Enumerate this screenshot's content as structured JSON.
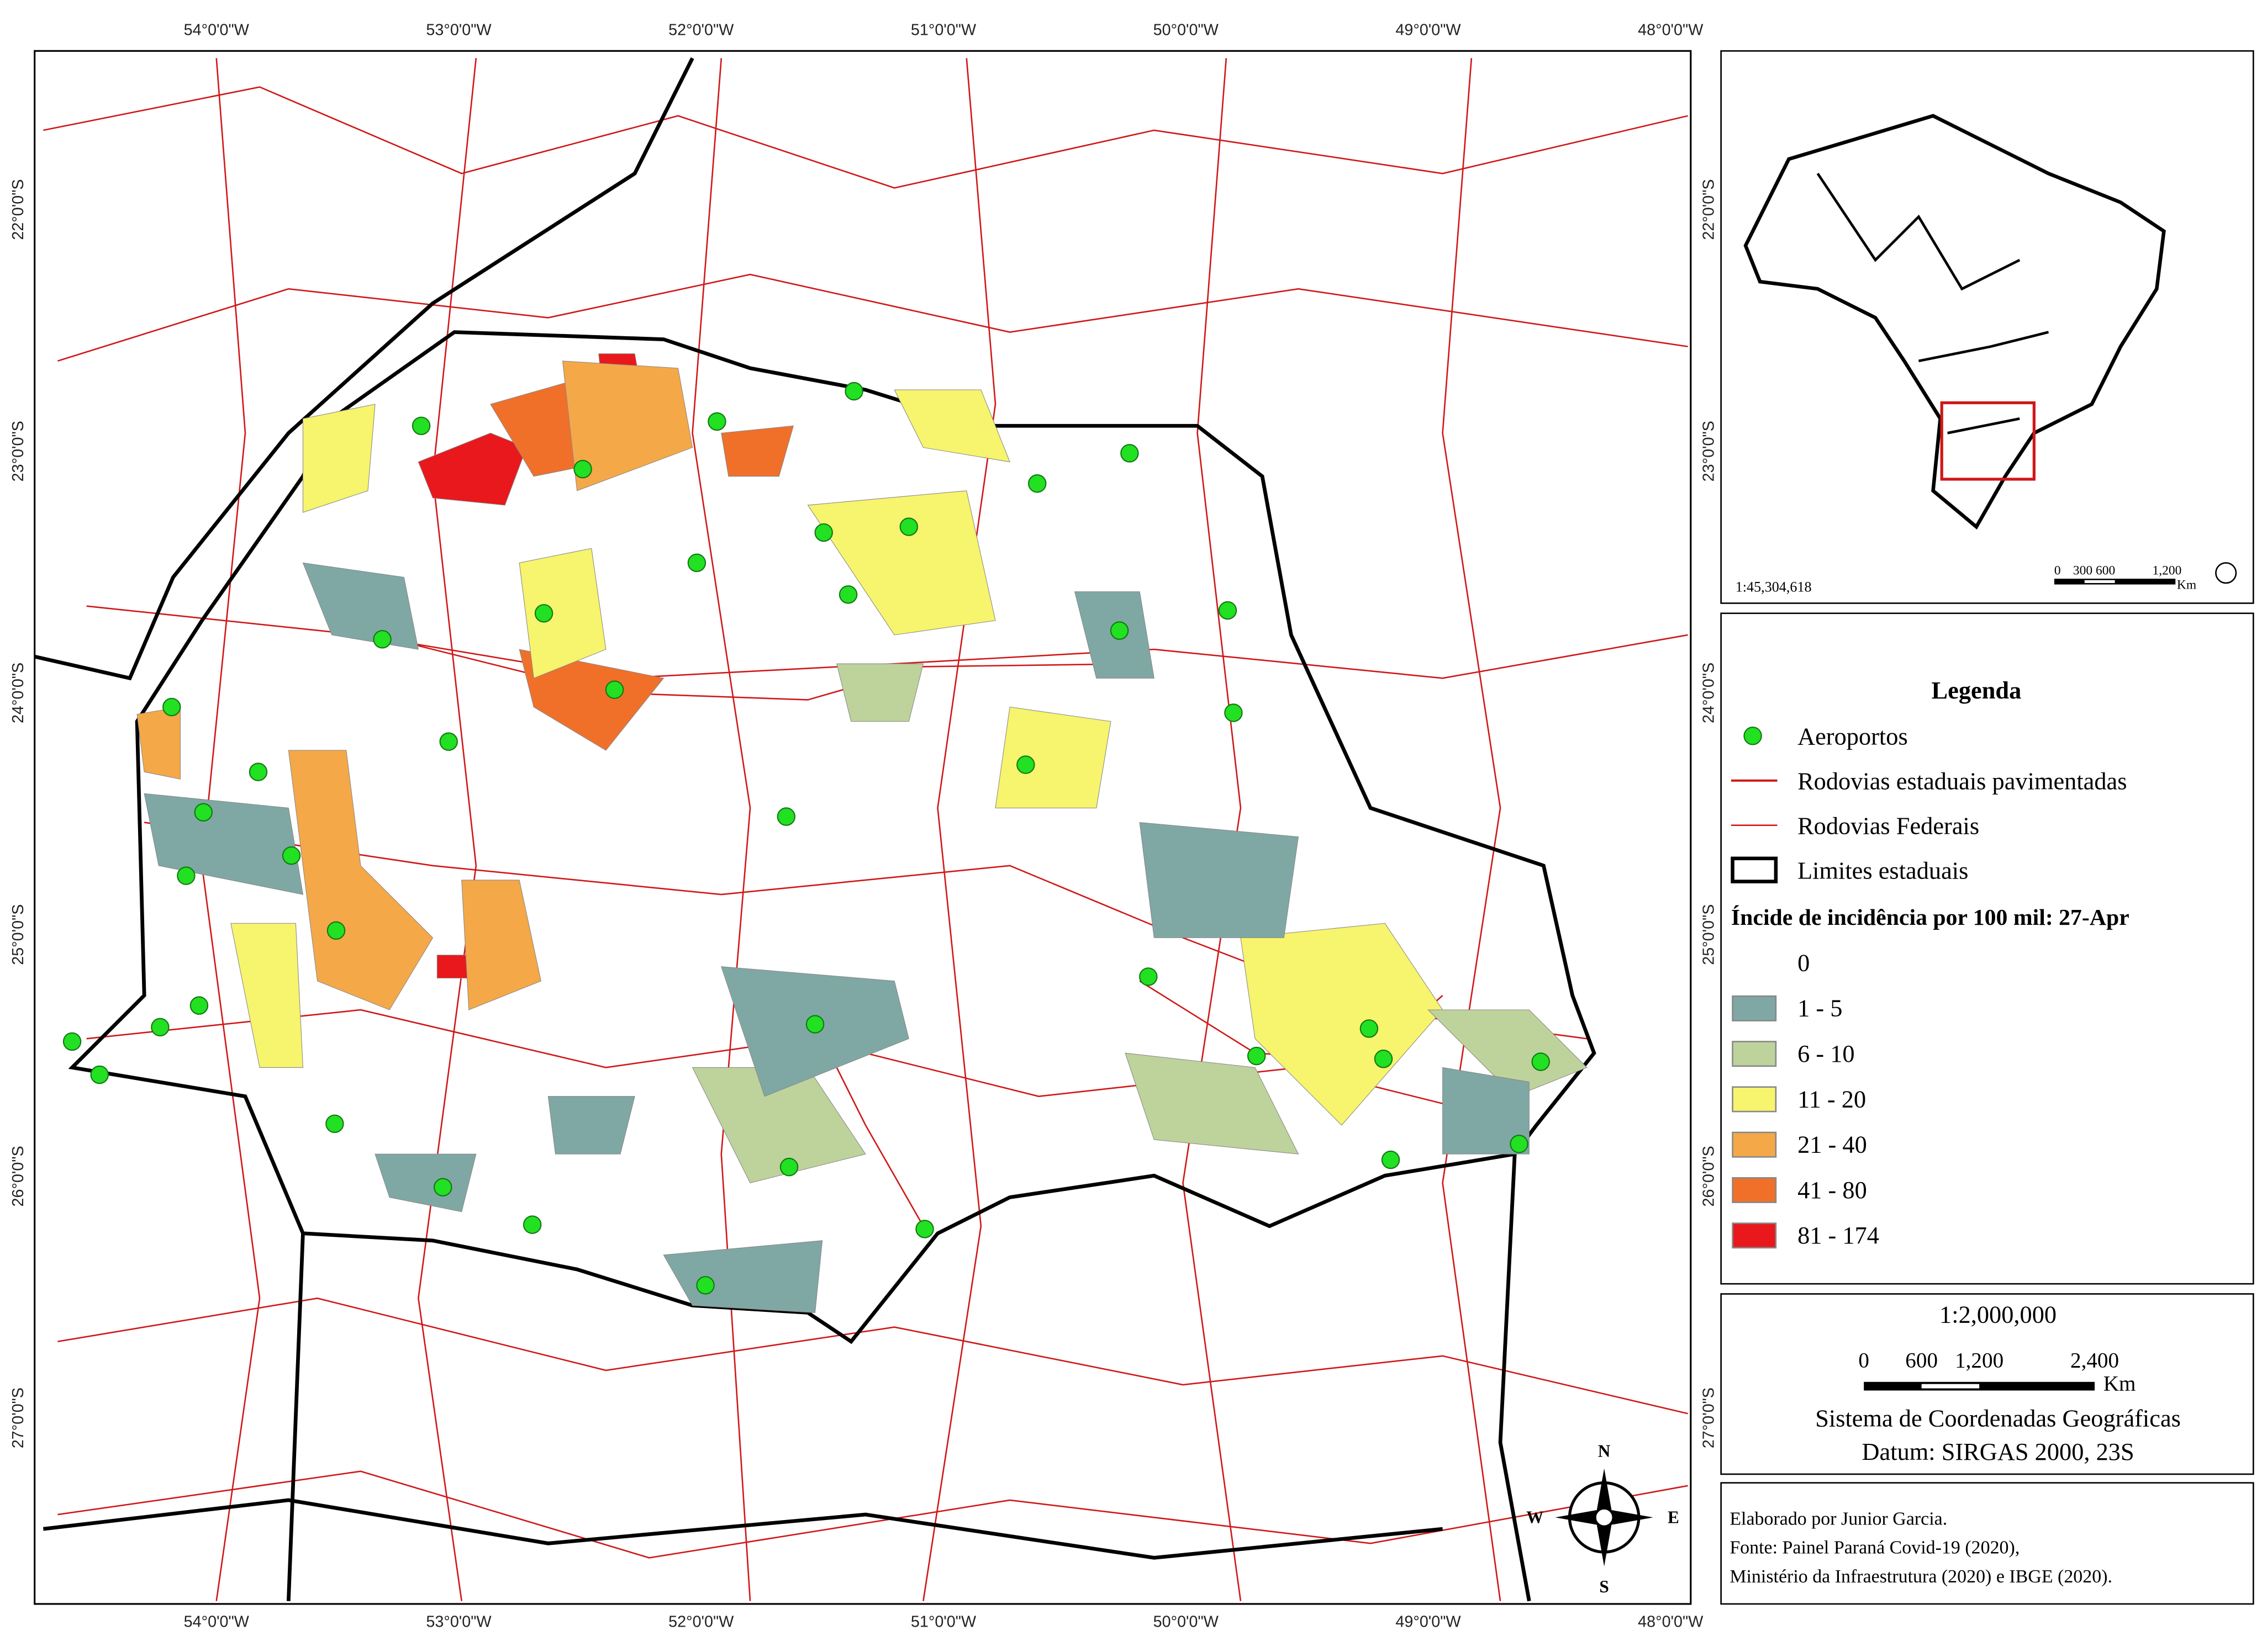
{
  "map": {
    "lon_labels": [
      "54°0'0\"W",
      "53°0'0\"W",
      "52°0'0\"W",
      "51°0'0\"W",
      "50°0'0\"W",
      "49°0'0\"W",
      "48°0'0\"W"
    ],
    "lat_labels": [
      "22°0'0\"S",
      "23°0'0\"S",
      "24°0'0\"S",
      "25°0'0\"S",
      "26°0'0\"S",
      "27°0'0\"S"
    ],
    "compass": {
      "n": "N",
      "s": "S",
      "e": "E",
      "w": "W"
    }
  },
  "inset": {
    "scale_text": "1:45,304,618",
    "scale_ticks": [
      "0",
      "300 600",
      "1,200"
    ],
    "unit": "Km"
  },
  "legend": {
    "title": "Legenda",
    "items": [
      "Aeroportos",
      "Rodovias estaduais pavimentadas",
      "Rodovias Federais",
      "Limites estaduais"
    ],
    "index_title": "Íncide de incidência por 100 mil: 27-Apr",
    "classes": [
      {
        "label": "0",
        "color": "#ffffff"
      },
      {
        "label": "1 - 5",
        "color": "#7fa8a4"
      },
      {
        "label": "6 - 10",
        "color": "#bdd39b"
      },
      {
        "label": "11 - 20",
        "color": "#f7f46d"
      },
      {
        "label": "21 - 40",
        "color": "#f5a848"
      },
      {
        "label": "41 - 80",
        "color": "#f0702a"
      },
      {
        "label": "81 - 174",
        "color": "#e8181c"
      }
    ]
  },
  "scale": {
    "ratio": "1:2,000,000",
    "ticks": [
      "0",
      "600",
      "1,200",
      "2,400"
    ],
    "unit": "Km",
    "crs": "Sistema de Coordenadas Geográficas",
    "datum": "Datum: SIRGAS 2000, 23S"
  },
  "credits": [
    "Elaborado por Junior Garcia.",
    "Fonte: Painel Paraná Covid-19 (2020),",
    "Ministério da Infraestrutura (2020) e IBGE (2020)."
  ]
}
